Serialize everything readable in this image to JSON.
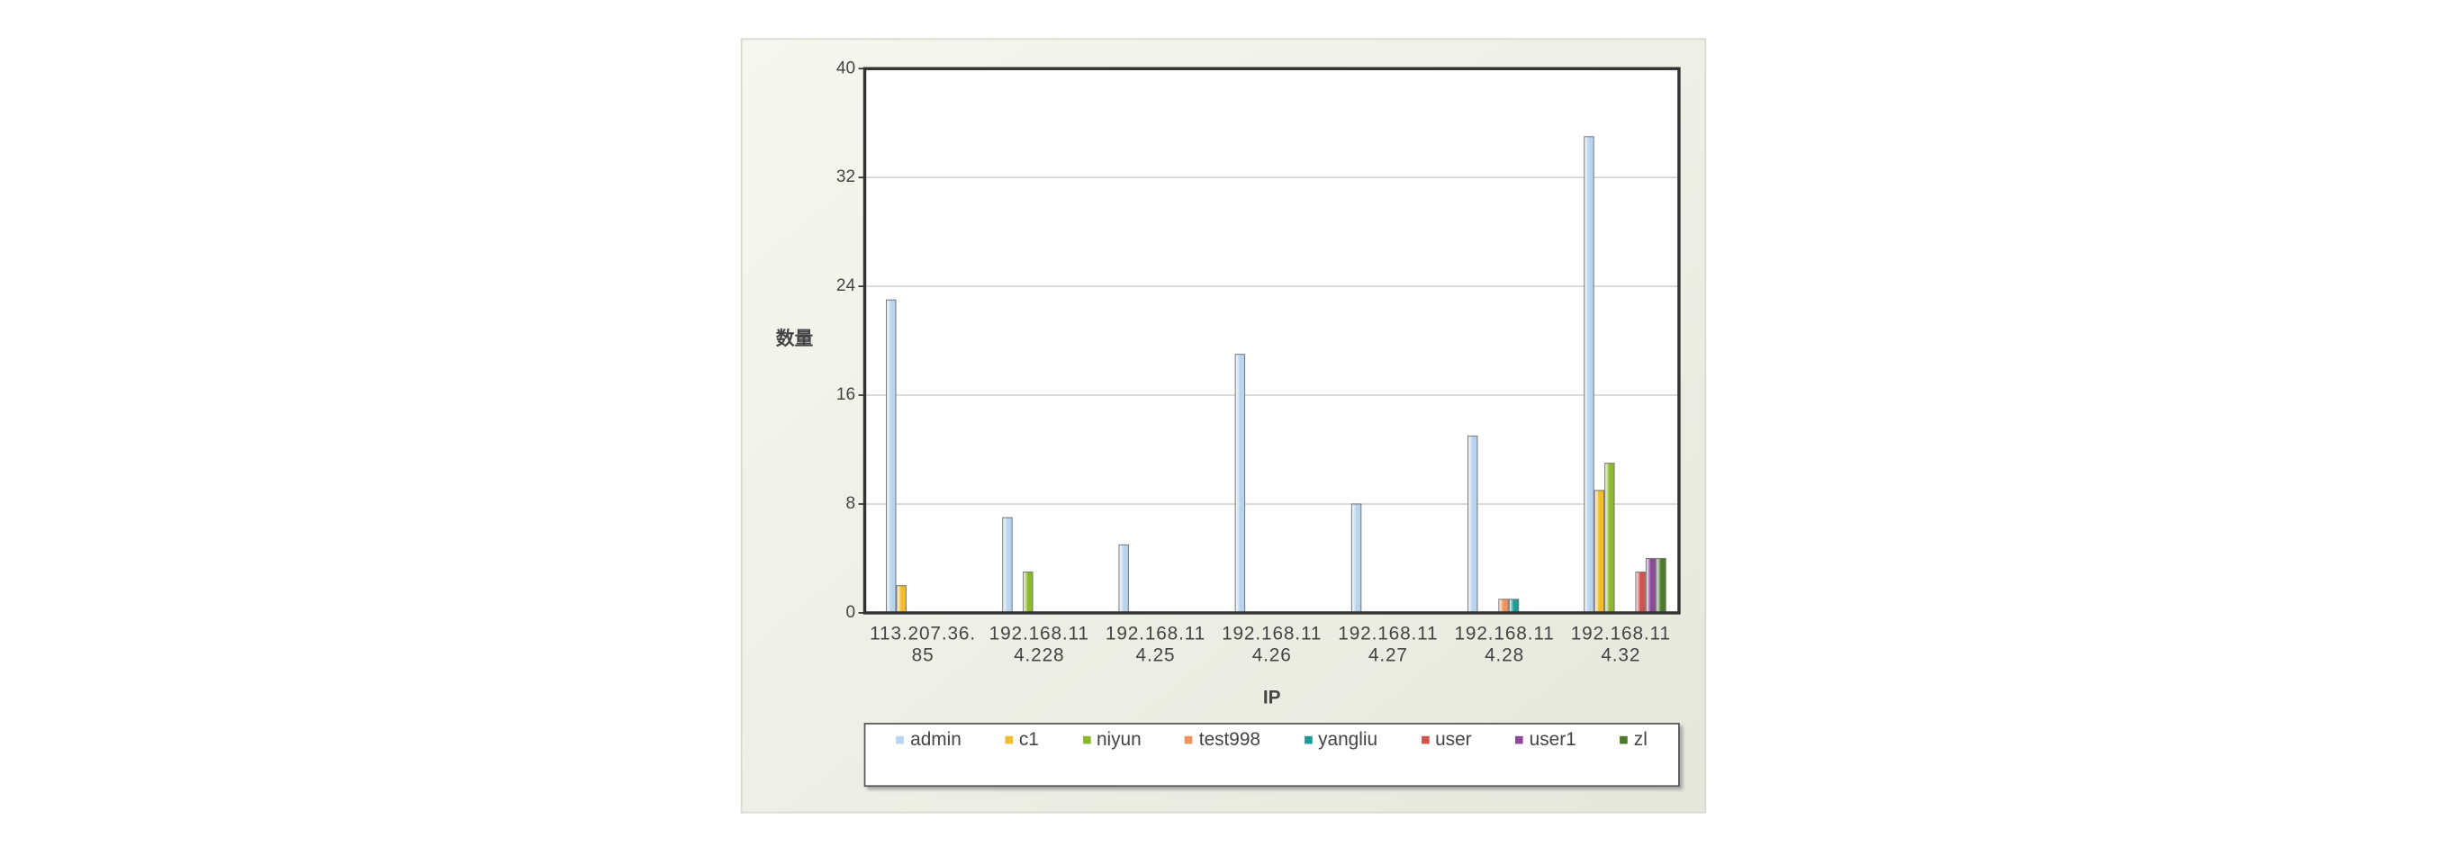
{
  "chart_data": {
    "type": "bar",
    "x_label": "IP",
    "y_label": "数量",
    "categories": [
      "113.207.36.85",
      "192.168.114.228",
      "192.168.114.25",
      "192.168.114.26",
      "192.168.114.27",
      "192.168.114.28",
      "192.168.114.32"
    ],
    "series": [
      {
        "name": "admin",
        "color": "#b8d4ee",
        "values": [
          23,
          7,
          5,
          19,
          8,
          13,
          35
        ]
      },
      {
        "name": "c1",
        "color": "#f2bd2a",
        "values": [
          2,
          0,
          0,
          0,
          0,
          0,
          9
        ]
      },
      {
        "name": "niyun",
        "color": "#8cb82c",
        "values": [
          0,
          3,
          0,
          0,
          0,
          0,
          11
        ]
      },
      {
        "name": "test998",
        "color": "#f0935a",
        "values": [
          0,
          0,
          0,
          0,
          0,
          1,
          0
        ]
      },
      {
        "name": "yangliu",
        "color": "#1f9a98",
        "values": [
          0,
          0,
          0,
          0,
          0,
          1,
          0
        ]
      },
      {
        "name": "user",
        "color": "#d4504c",
        "values": [
          0,
          0,
          0,
          0,
          0,
          0,
          3
        ]
      },
      {
        "name": "user1",
        "color": "#8a4a98",
        "values": [
          0,
          0,
          0,
          0,
          0,
          0,
          4
        ]
      },
      {
        "name": "zl",
        "color": "#4c7a28",
        "values": [
          0,
          0,
          0,
          0,
          0,
          0,
          4
        ]
      }
    ],
    "ylim": [
      0,
      40
    ],
    "yticks": [
      0,
      8,
      16,
      24,
      32,
      40
    ],
    "grid": true
  }
}
